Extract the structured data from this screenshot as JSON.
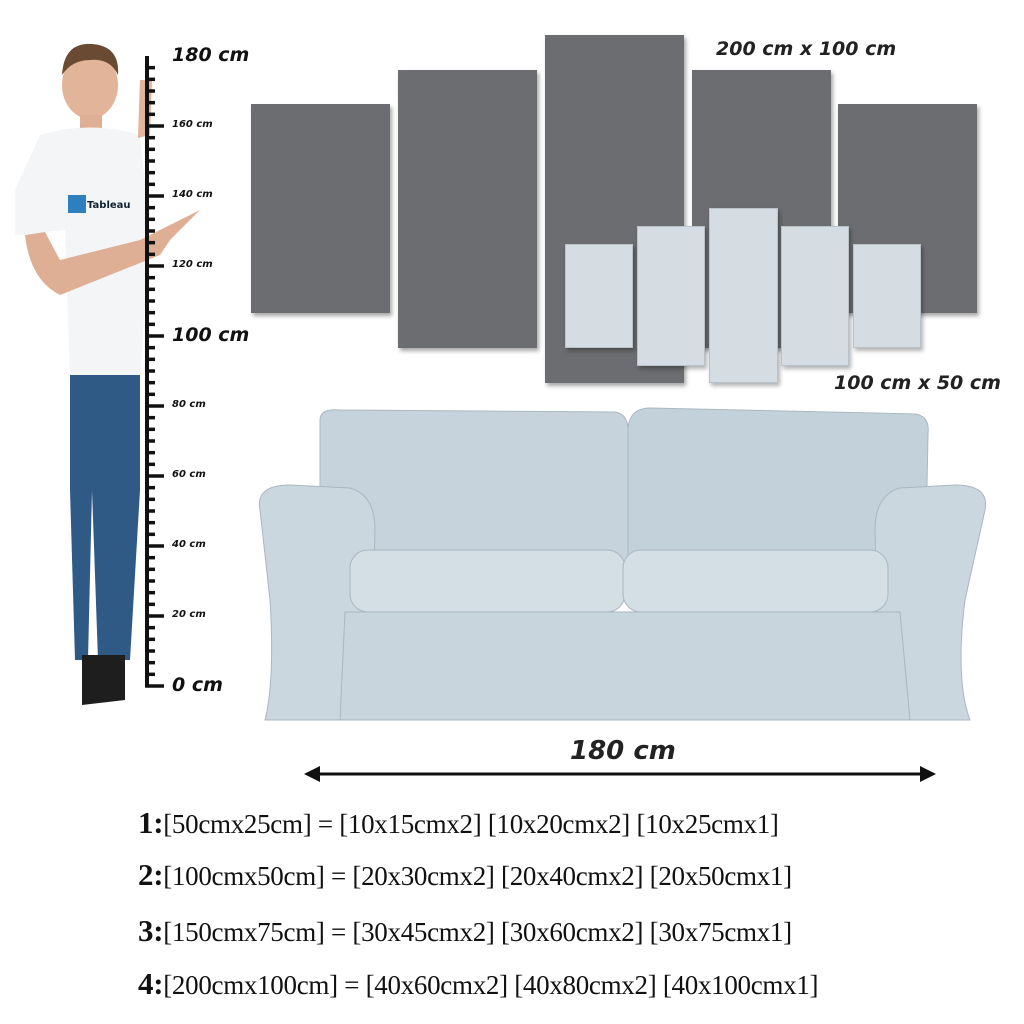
{
  "ruler": {
    "labels": [
      {
        "value": 180,
        "text": "180 cm",
        "major": true
      },
      {
        "value": 160,
        "text": "160 cm",
        "major": false
      },
      {
        "value": 140,
        "text": "140 cm",
        "major": false
      },
      {
        "value": 120,
        "text": "120 cm",
        "major": false
      },
      {
        "value": 100,
        "text": "100 cm",
        "major": true
      },
      {
        "value": 80,
        "text": "80 cm",
        "major": false
      },
      {
        "value": 60,
        "text": "60 cm",
        "major": false
      },
      {
        "value": 40,
        "text": "40 cm",
        "major": false
      },
      {
        "value": 20,
        "text": "20 cm",
        "major": false
      },
      {
        "value": 0,
        "text": "0 cm",
        "major": true
      }
    ]
  },
  "shirt_logo": "Tableau",
  "large_set_label": "200 cm x 100 cm",
  "small_set_label": "100 cm x 50 cm",
  "sofa_width_label": "180 cm",
  "colors": {
    "panel_dark": "#6b6d70",
    "panel_light": "#d5dce2",
    "sofa": "#c8d5dd"
  },
  "specs": [
    {
      "num": "1:",
      "text": "[50cmx25cm] = [10x15cmx2] [10x20cmx2] [10x25cmx1]"
    },
    {
      "num": "2:",
      "text": "[100cmx50cm] = [20x30cmx2] [20x40cmx2] [20x50cmx1]"
    },
    {
      "num": "3:",
      "text": "[150cmx75cm] = [30x45cmx2] [30x60cmx2] [30x75cmx1]"
    },
    {
      "num": "4:",
      "text": "[200cmx100cm] = [40x60cmx2] [40x80cmx2] [40x100cmx1]"
    }
  ]
}
